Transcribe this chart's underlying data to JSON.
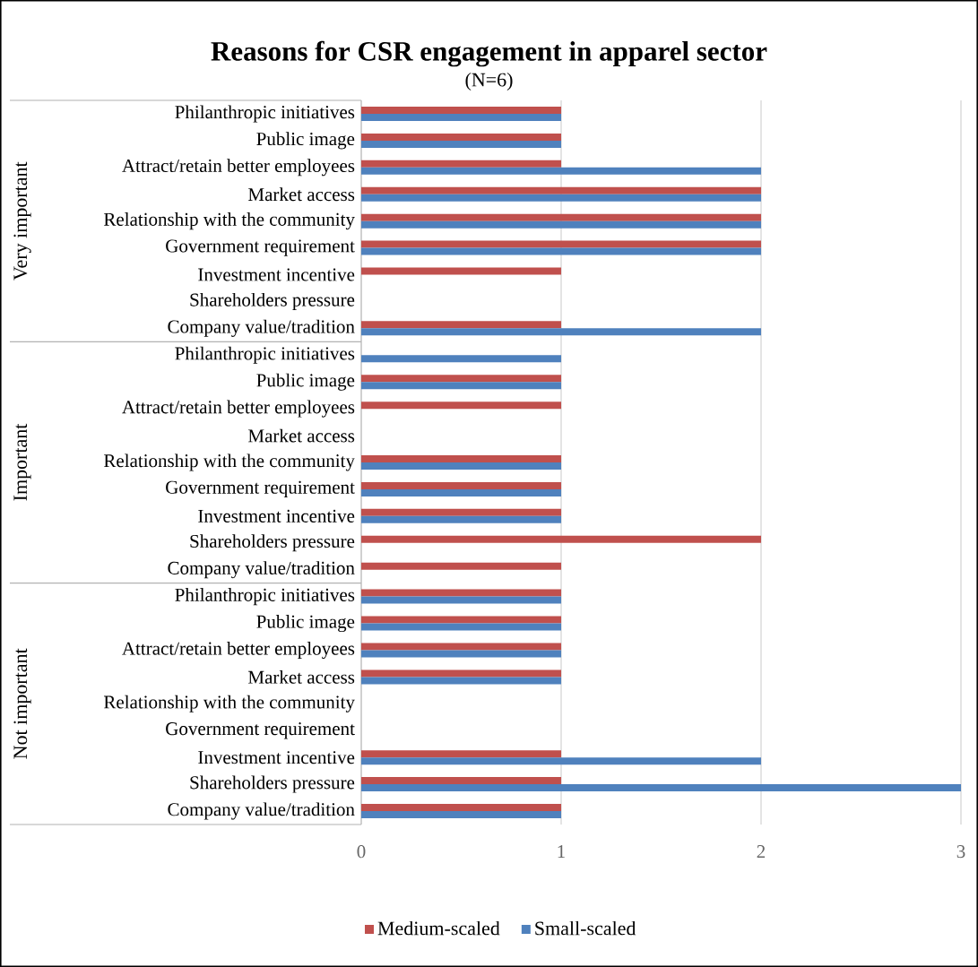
{
  "chart_data": {
    "type": "bar",
    "orientation": "horizontal",
    "title": "Reasons for CSR engagement in apparel sector",
    "subtitle": "(N=6)",
    "categories": [
      "Philanthropic initiatives",
      "Public image",
      "Attract/retain better employees",
      "Market access",
      "Relationship with the community",
      "Government requirement",
      "Investment incentive",
      "Shareholders pressure",
      "Company value/tradition",
      "Philanthropic initiatives",
      "Public image",
      "Attract/retain better employees",
      "Market access",
      "Relationship with the community",
      "Government requirement",
      "Investment incentive",
      "Shareholders pressure",
      "Company value/tradition",
      "Philanthropic initiatives",
      "Public image",
      "Attract/retain better employees",
      "Market access",
      "Relationship with the community",
      "Government requirement",
      "Investment incentive",
      "Shareholders pressure",
      "Company value/tradition"
    ],
    "series": [
      {
        "name": "Medium-scaled",
        "color": "#c0504d",
        "values": [
          1,
          1,
          1,
          2,
          2,
          2,
          1,
          0,
          1,
          0,
          1,
          1,
          0,
          1,
          1,
          1,
          2,
          1,
          1,
          1,
          1,
          1,
          0,
          0,
          1,
          1,
          1
        ]
      },
      {
        "name": "Small-scaled",
        "color": "#4f81bd",
        "values": [
          1,
          1,
          2,
          2,
          2,
          2,
          0,
          0,
          2,
          1,
          1,
          0,
          0,
          1,
          1,
          1,
          0,
          0,
          1,
          1,
          1,
          1,
          0,
          0,
          2,
          3,
          1
        ]
      }
    ],
    "annotations": [
      "Very important",
      "Important",
      "Not important"
    ],
    "xlim": [
      0,
      3
    ],
    "xticks": [
      0,
      1,
      2,
      3
    ],
    "grid": "x",
    "legend": "bottom"
  }
}
